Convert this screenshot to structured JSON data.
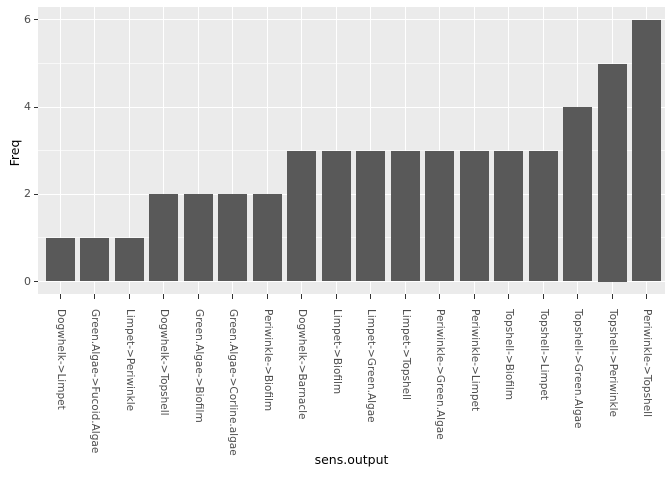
{
  "chart_data": {
    "type": "bar",
    "title": "",
    "xlabel": "sens.output",
    "ylabel": "Freq",
    "categories": [
      "Dogwhelk->Limpet",
      "Green.Algae->Fucoid.Algae",
      "Limpet->Periwinkle",
      "Dogwhelk->Topshell",
      "Green.Algae->Biofilm",
      "Green.Algae->Corline.algae",
      "Periwinkle->Biofilm",
      "Dogwhelk->Barnacle",
      "Limpet->Biofilm",
      "Limpet->Green.Algae",
      "Limpet->Topshell",
      "Periwinkle->Green.Algae",
      "Periwinkle->Limpet",
      "Topshell->Biofilm",
      "Topshell->Limpet",
      "Topshell->Green.Algae",
      "Topshell->Periwinkle",
      "Periwinkle->Topshell"
    ],
    "values": [
      1,
      1,
      1,
      2,
      2,
      2,
      2,
      3,
      3,
      3,
      3,
      3,
      3,
      3,
      3,
      4,
      5,
      6
    ],
    "ylim": [
      0,
      6.3
    ],
    "yticks": [
      0,
      2,
      4,
      6
    ],
    "yticks_minor": [
      1,
      3,
      5
    ],
    "grid": "on",
    "legend": "none"
  },
  "style": {
    "bar_color": "#595959",
    "panel_bg": "#EBEBEB",
    "grid_color": "#FFFFFF",
    "tick_color": "#333333",
    "tick_label_color": "#4D4D4D",
    "axis_title_color": "#000000"
  }
}
